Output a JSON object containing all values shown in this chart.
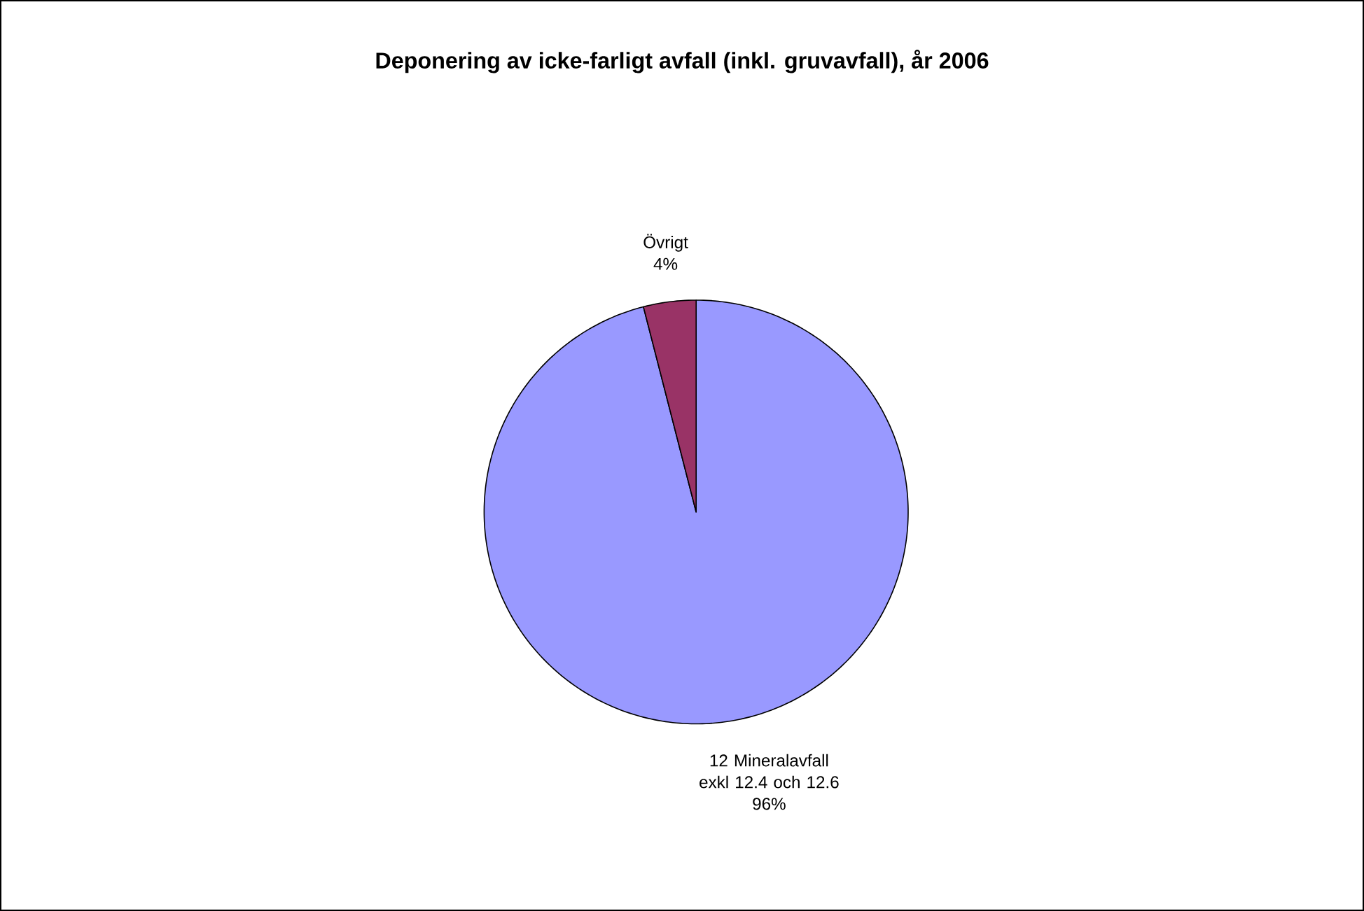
{
  "chart_data": {
    "type": "pie",
    "title": "Deponering av icke-farligt avfall (inkl. gruvavfall), år 2006",
    "categories": [
      "12 Mineralavfall exkl 12.4 och 12.6",
      "Övrigt"
    ],
    "values": [
      96,
      4
    ],
    "value_labels": [
      "96%",
      "4%"
    ],
    "colors": [
      "#9999ff",
      "#993366"
    ]
  }
}
